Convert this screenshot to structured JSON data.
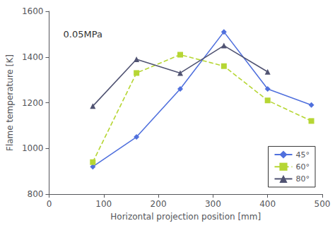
{
  "chart_data": {
    "type": "line",
    "xlabel": "Horizontal projection position [mm]",
    "ylabel": "Flame temperature [K]",
    "annotation": "0.05MPa",
    "series": [
      {
        "name": "45°",
        "x": [
          80,
          160,
          240,
          320,
          400,
          480
        ],
        "values": [
          920,
          1050,
          1260,
          1510,
          1260,
          1190
        ],
        "marker": "diamond",
        "line_style": "solid"
      },
      {
        "name": "60°",
        "x": [
          80,
          160,
          240,
          320,
          400,
          480
        ],
        "values": [
          940,
          1330,
          1410,
          1360,
          1210,
          1120
        ],
        "marker": "square",
        "line_style": "dashed"
      },
      {
        "name": "80°",
        "x": [
          80,
          160,
          240,
          320,
          400
        ],
        "values": [
          1185,
          1390,
          1330,
          1450,
          1335
        ],
        "marker": "triangle",
        "line_style": "solid"
      }
    ],
    "xlim": [
      0,
      500
    ],
    "ylim": [
      800,
      1600
    ],
    "xticks": [
      0,
      100,
      200,
      300,
      400,
      500
    ],
    "yticks": [
      800,
      1000,
      1200,
      1400,
      1600
    ],
    "grid": false,
    "legend": "lower right"
  }
}
